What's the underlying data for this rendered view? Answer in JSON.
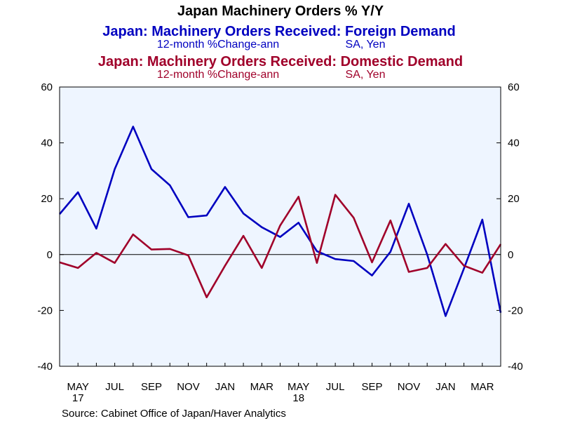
{
  "chart_data": {
    "type": "line",
    "title": "Japan Machinery Orders % Y/Y",
    "series": [
      {
        "name": "Japan: Machinery Orders Received: Foreign Demand",
        "subtitle_measure": "12-month %Change-ann",
        "subtitle_units": "SA, Yen",
        "color": "#0000c0",
        "values": [
          14.5,
          22.3,
          9.3,
          30.6,
          45.8,
          30.6,
          24.8,
          13.4,
          14.0,
          24.2,
          14.7,
          9.8,
          6.3,
          11.4,
          1.2,
          -1.6,
          -2.3,
          -7.5,
          1.0,
          18.2,
          0.0,
          -22.0,
          -5.0,
          12.5,
          -20.8
        ]
      },
      {
        "name": "Japan: Machinery Orders Received: Domestic Demand",
        "subtitle_measure": "12-month %Change-ann",
        "subtitle_units": "SA, Yen",
        "color": "#a0002a",
        "values": [
          -2.8,
          -4.8,
          0.6,
          -3.0,
          7.2,
          1.8,
          2.0,
          -0.3,
          -15.3,
          -4.0,
          6.7,
          -4.8,
          10.4,
          20.7,
          -3.0,
          21.4,
          13.2,
          -2.8,
          12.2,
          -6.2,
          -4.8,
          3.8,
          -4.0,
          -6.5,
          3.7
        ]
      }
    ],
    "x": [
      "2017-04",
      "2017-05",
      "2017-06",
      "2017-07",
      "2017-08",
      "2017-09",
      "2017-10",
      "2017-11",
      "2017-12",
      "2018-01",
      "2018-02",
      "2018-03",
      "2018-04",
      "2018-05",
      "2018-06",
      "2018-07",
      "2018-08",
      "2018-09",
      "2018-10",
      "2018-11",
      "2018-12",
      "2019-01",
      "2019-02",
      "2019-03",
      "2019-04"
    ],
    "x_tick_labels": [
      "MAY",
      "JUL",
      "SEP",
      "NOV",
      "JAN",
      "MAR",
      "MAY",
      "JUL",
      "SEP",
      "NOV",
      "JAN",
      "MAR"
    ],
    "x_tick_months": [
      "2017-05",
      "2017-07",
      "2017-09",
      "2017-11",
      "2018-01",
      "2018-03",
      "2018-05",
      "2018-07",
      "2018-09",
      "2018-11",
      "2019-01",
      "2019-03"
    ],
    "year_labels": [
      {
        "label": "17",
        "month": "2017-05"
      },
      {
        "label": "18",
        "month": "2018-05"
      }
    ],
    "ylim": [
      -40,
      60
    ],
    "y_ticks": [
      -40,
      -20,
      0,
      20,
      40,
      60
    ],
    "y_axis": "both",
    "grid": false,
    "zero_line": true,
    "plot_background": "#eef5ff",
    "source": "Source:  Cabinet Office of Japan/Haver Analytics"
  }
}
